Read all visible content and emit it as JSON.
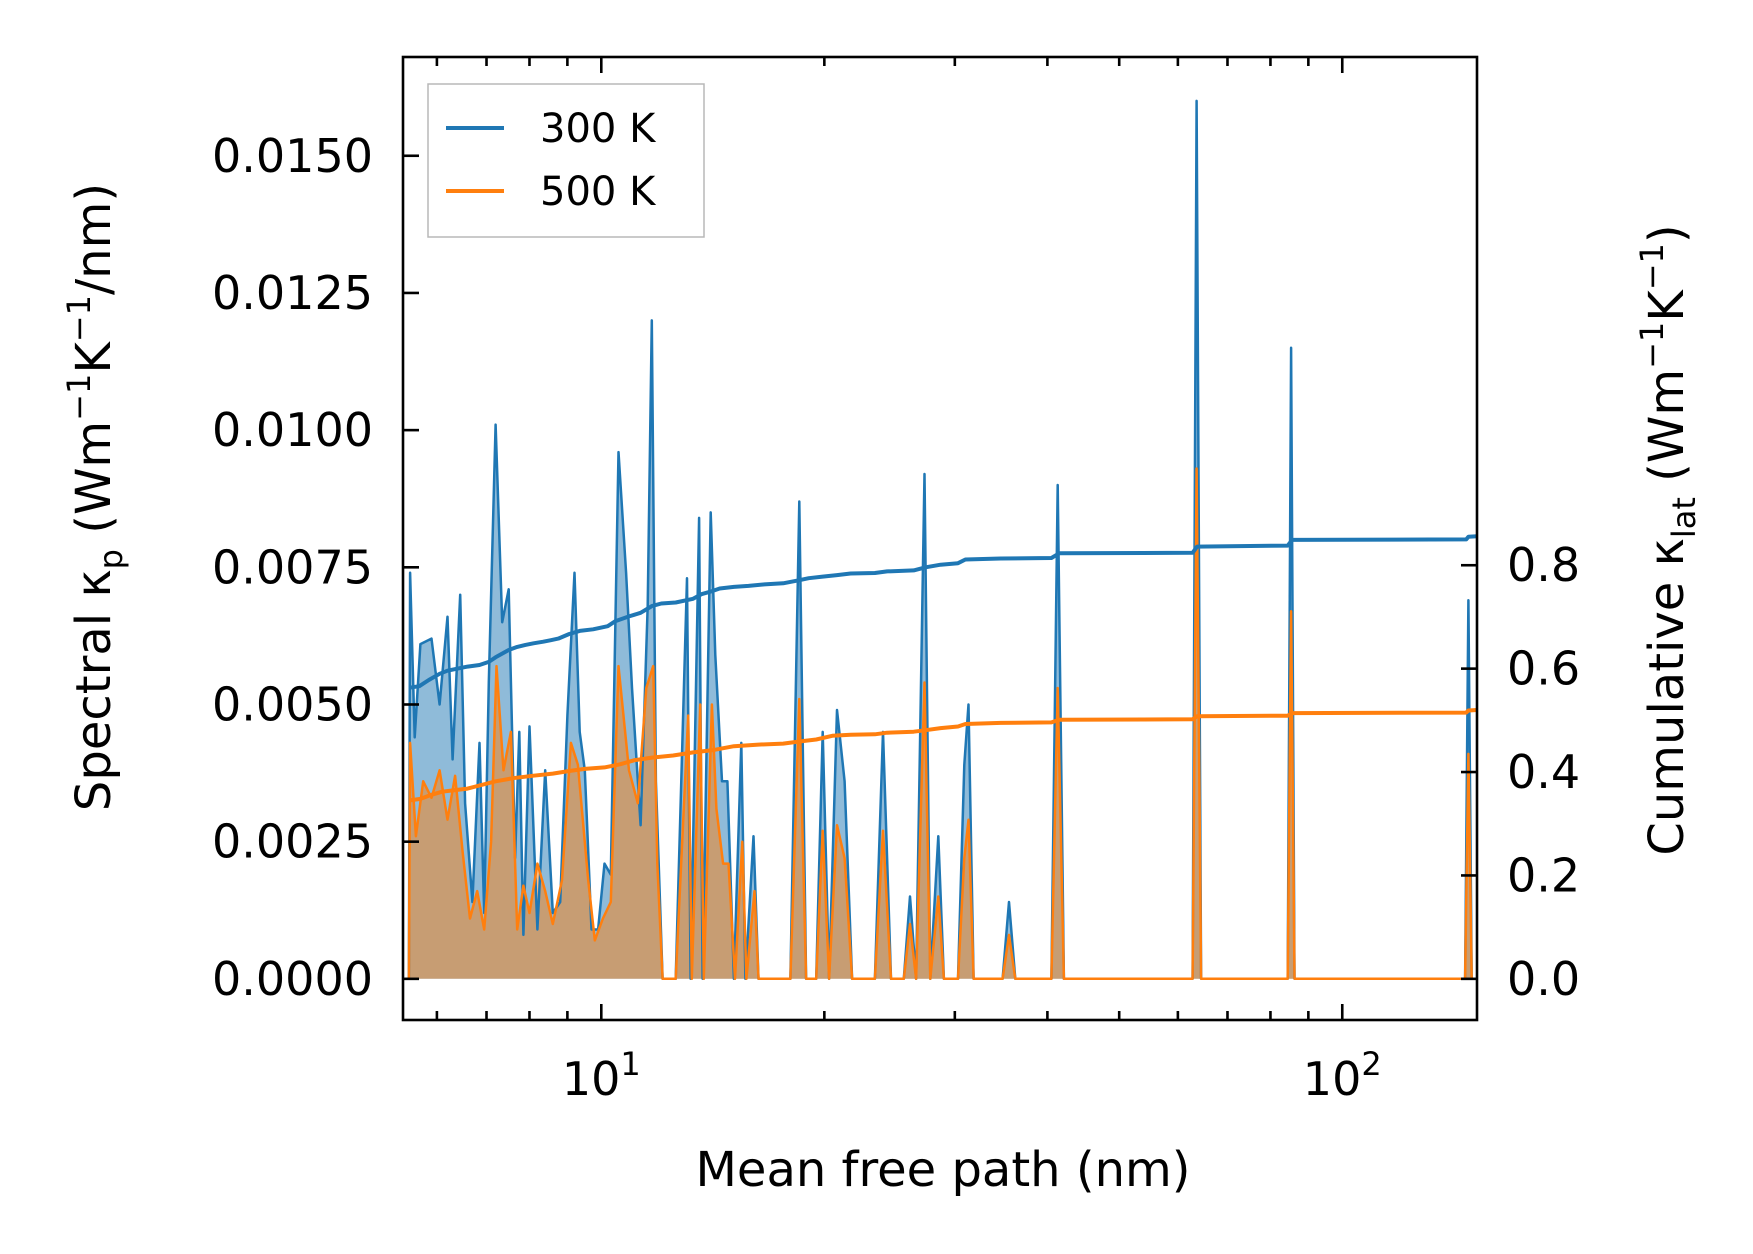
{
  "chart_data": {
    "type": "line",
    "xscale": "log",
    "xlim": [
      5.4,
      152
    ],
    "xlabel": "Mean free path (nm)",
    "ylabel_left": {
      "pre": "Spectral κ",
      "sub": "p",
      "post": " (Wm",
      "sup1": "−1",
      "mid": "K",
      "sup2": "−1",
      "end": "/nm)"
    },
    "ylabel_right": {
      "pre": "Cumulative κ",
      "sub": "lat",
      "post": " (Wm",
      "sup1": "−1",
      "mid": "K",
      "sup2": "−1",
      "end": ")"
    },
    "ylim_left": [
      -0.00075,
      0.0168
    ],
    "ylim_right": [
      -0.0796,
      1.783
    ],
    "x_ticks_major": [
      {
        "value": 10,
        "base": "10",
        "exp": "1"
      },
      {
        "value": 100,
        "base": "10",
        "exp": "2"
      }
    ],
    "x_ticks_minor": [
      6,
      7,
      8,
      9,
      20,
      30,
      40,
      50,
      60,
      70,
      80,
      90
    ],
    "y_ticks_left": [
      "0.0000",
      "0.0025",
      "0.0050",
      "0.0075",
      "0.0100",
      "0.0125",
      "0.0150"
    ],
    "y_ticks_left_values": [
      0,
      0.0025,
      0.005,
      0.0075,
      0.01,
      0.0125,
      0.015
    ],
    "y_ticks_right": [
      "0.0",
      "0.2",
      "0.4",
      "0.6",
      "0.8"
    ],
    "y_ticks_right_values": [
      0,
      0.2,
      0.4,
      0.6,
      0.8
    ],
    "legend": {
      "position": "upper-left",
      "entries": [
        {
          "label": "300 K",
          "color": "#1f77b4"
        },
        {
          "label": "500 K",
          "color": "#ff7f0e"
        }
      ]
    },
    "series": [
      {
        "name": "300 K",
        "color": "#1f77b4",
        "spectral": [
          [
            5.5,
            0
          ],
          [
            5.52,
            0.0074
          ],
          [
            5.6,
            0.0044
          ],
          [
            5.7,
            0.0061
          ],
          [
            5.9,
            0.0062
          ],
          [
            6.05,
            0.005
          ],
          [
            6.2,
            0.0066
          ],
          [
            6.3,
            0.004
          ],
          [
            6.45,
            0.007
          ],
          [
            6.55,
            0.0032
          ],
          [
            6.7,
            0.0014
          ],
          [
            6.85,
            0.0043
          ],
          [
            6.95,
            0.0012
          ],
          [
            7.05,
            0.0054
          ],
          [
            7.2,
            0.0101
          ],
          [
            7.35,
            0.0065
          ],
          [
            7.5,
            0.0071
          ],
          [
            7.65,
            0.0022
          ],
          [
            7.75,
            0.0045
          ],
          [
            7.85,
            0.0008
          ],
          [
            8.0,
            0.0046
          ],
          [
            8.2,
            0.0009
          ],
          [
            8.4,
            0.0038
          ],
          [
            8.6,
            0.0012
          ],
          [
            8.8,
            0.0014
          ],
          [
            9.0,
            0.0048
          ],
          [
            9.2,
            0.0074
          ],
          [
            9.35,
            0.0045
          ],
          [
            9.5,
            0.0038
          ],
          [
            9.7,
            0.0009
          ],
          [
            9.9,
            0.0009
          ],
          [
            10.1,
            0.0021
          ],
          [
            10.3,
            0.0019
          ],
          [
            10.55,
            0.0096
          ],
          [
            10.8,
            0.0074
          ],
          [
            11.0,
            0.0053
          ],
          [
            11.3,
            0.0028
          ],
          [
            11.55,
            0.0068
          ],
          [
            11.7,
            0.012
          ],
          [
            11.85,
            0.0036
          ],
          [
            12.1,
            0
          ],
          [
            12.6,
            0
          ],
          [
            13.05,
            0.0073
          ],
          [
            13.2,
            0
          ],
          [
            13.55,
            0.0084
          ],
          [
            13.7,
            0
          ],
          [
            14.05,
            0.0085
          ],
          [
            14.25,
            0.0059
          ],
          [
            14.55,
            0.0036
          ],
          [
            14.8,
            0.0036
          ],
          [
            15.1,
            0
          ],
          [
            15.45,
            0.0043
          ],
          [
            15.65,
            0
          ],
          [
            16.05,
            0.0026
          ],
          [
            16.3,
            0
          ],
          [
            18.0,
            0
          ],
          [
            18.5,
            0.0087
          ],
          [
            18.9,
            0
          ],
          [
            19.5,
            0
          ],
          [
            19.9,
            0.0045
          ],
          [
            20.3,
            0
          ],
          [
            20.8,
            0.0049
          ],
          [
            21.3,
            0.0036
          ],
          [
            21.8,
            0
          ],
          [
            23.4,
            0
          ],
          [
            24.0,
            0.0045
          ],
          [
            24.6,
            0
          ],
          [
            25.6,
            0
          ],
          [
            26.1,
            0.0015
          ],
          [
            26.6,
            0
          ],
          [
            27.3,
            0.0092
          ],
          [
            27.8,
            0
          ],
          [
            28.5,
            0.0026
          ],
          [
            29.0,
            0
          ],
          [
            30.3,
            0
          ],
          [
            30.9,
            0.0039
          ],
          [
            31.3,
            0.005
          ],
          [
            31.8,
            0
          ],
          [
            34.8,
            0
          ],
          [
            35.5,
            0.0014
          ],
          [
            36.2,
            0
          ],
          [
            40.5,
            0
          ],
          [
            41.3,
            0.009
          ],
          [
            42.1,
            0
          ],
          [
            62.8,
            0
          ],
          [
            63.6,
            0.016
          ],
          [
            64.5,
            0
          ],
          [
            67.0,
            0
          ],
          [
            84.4,
            0
          ],
          [
            85.3,
            0.0115
          ],
          [
            86.2,
            0
          ],
          [
            146.5,
            0
          ],
          [
            148.0,
            0.0069
          ],
          [
            149.5,
            0
          ]
        ],
        "cumulative": [
          [
            5.5,
            0.563
          ],
          [
            5.68,
            0.566
          ],
          [
            5.85,
            0.578
          ],
          [
            6.05,
            0.59
          ],
          [
            6.2,
            0.596
          ],
          [
            6.4,
            0.6
          ],
          [
            6.6,
            0.604
          ],
          [
            6.85,
            0.607
          ],
          [
            7.05,
            0.613
          ],
          [
            7.2,
            0.622
          ],
          [
            7.5,
            0.636
          ],
          [
            7.7,
            0.642
          ],
          [
            7.9,
            0.646
          ],
          [
            8.1,
            0.649
          ],
          [
            8.35,
            0.652
          ],
          [
            8.55,
            0.655
          ],
          [
            8.75,
            0.658
          ],
          [
            9.05,
            0.667
          ],
          [
            9.35,
            0.673
          ],
          [
            9.75,
            0.676
          ],
          [
            10.2,
            0.682
          ],
          [
            10.45,
            0.692
          ],
          [
            10.9,
            0.701
          ],
          [
            11.3,
            0.708
          ],
          [
            11.7,
            0.721
          ],
          [
            12.05,
            0.726
          ],
          [
            12.6,
            0.728
          ],
          [
            13.3,
            0.735
          ],
          [
            13.65,
            0.744
          ],
          [
            14.05,
            0.749
          ],
          [
            14.45,
            0.755
          ],
          [
            15.1,
            0.758
          ],
          [
            15.8,
            0.76
          ],
          [
            16.6,
            0.763
          ],
          [
            17.6,
            0.765
          ],
          [
            18.5,
            0.771
          ],
          [
            19.05,
            0.775
          ],
          [
            19.9,
            0.778
          ],
          [
            20.8,
            0.781
          ],
          [
            21.7,
            0.784
          ],
          [
            23.4,
            0.785
          ],
          [
            24.3,
            0.788
          ],
          [
            26.4,
            0.79
          ],
          [
            27.4,
            0.796
          ],
          [
            28.7,
            0.801
          ],
          [
            30.3,
            0.804
          ],
          [
            31.0,
            0.811
          ],
          [
            34.6,
            0.813
          ],
          [
            40.5,
            0.814
          ],
          [
            41.5,
            0.823
          ],
          [
            62.8,
            0.824
          ],
          [
            63.7,
            0.836
          ],
          [
            84.4,
            0.838
          ],
          [
            85.6,
            0.849
          ],
          [
            147.0,
            0.85
          ],
          [
            148.0,
            0.855
          ],
          [
            152.0,
            0.856
          ]
        ]
      },
      {
        "name": "500 K",
        "color": "#ff7f0e",
        "spectral": [
          [
            5.5,
            0
          ],
          [
            5.52,
            0.0043
          ],
          [
            5.62,
            0.0026
          ],
          [
            5.75,
            0.0036
          ],
          [
            5.9,
            0.0033
          ],
          [
            6.05,
            0.0038
          ],
          [
            6.2,
            0.0029
          ],
          [
            6.35,
            0.0037
          ],
          [
            6.5,
            0.0023
          ],
          [
            6.65,
            0.0011
          ],
          [
            6.8,
            0.0016
          ],
          [
            6.95,
            0.0009
          ],
          [
            7.1,
            0.0025
          ],
          [
            7.22,
            0.0057
          ],
          [
            7.38,
            0.0038
          ],
          [
            7.55,
            0.0045
          ],
          [
            7.7,
            0.0009
          ],
          [
            7.85,
            0.0017
          ],
          [
            8.0,
            0.0012
          ],
          [
            8.2,
            0.0021
          ],
          [
            8.4,
            0.0016
          ],
          [
            8.6,
            0.001
          ],
          [
            8.85,
            0.0018
          ],
          [
            9.1,
            0.0043
          ],
          [
            9.3,
            0.0039
          ],
          [
            9.6,
            0.0018
          ],
          [
            9.8,
            0.0007
          ],
          [
            10.05,
            0.0011
          ],
          [
            10.3,
            0.0014
          ],
          [
            10.55,
            0.0057
          ],
          [
            10.9,
            0.0038
          ],
          [
            11.2,
            0.0032
          ],
          [
            11.5,
            0.0053
          ],
          [
            11.75,
            0.0057
          ],
          [
            11.9,
            0.0021
          ],
          [
            12.1,
            0
          ],
          [
            12.6,
            0
          ],
          [
            13.1,
            0.0048
          ],
          [
            13.25,
            0
          ],
          [
            13.6,
            0.005
          ],
          [
            13.75,
            0
          ],
          [
            14.1,
            0.005
          ],
          [
            14.3,
            0.0031
          ],
          [
            14.6,
            0.0021
          ],
          [
            14.85,
            0.0021
          ],
          [
            15.15,
            0
          ],
          [
            15.5,
            0.0025
          ],
          [
            15.7,
            0
          ],
          [
            16.1,
            0.0016
          ],
          [
            16.3,
            0
          ],
          [
            18.0,
            0
          ],
          [
            18.5,
            0.0051
          ],
          [
            18.9,
            0
          ],
          [
            19.5,
            0
          ],
          [
            19.9,
            0.0027
          ],
          [
            20.3,
            0
          ],
          [
            20.8,
            0.0028
          ],
          [
            21.3,
            0.0022
          ],
          [
            21.8,
            0
          ],
          [
            23.4,
            0
          ],
          [
            24.0,
            0.0027
          ],
          [
            24.6,
            0
          ],
          [
            25.6,
            0
          ],
          [
            26.1,
            0.001
          ],
          [
            26.6,
            0
          ],
          [
            27.3,
            0.0054
          ],
          [
            27.8,
            0
          ],
          [
            28.5,
            0.0015
          ],
          [
            29.0,
            0
          ],
          [
            30.3,
            0
          ],
          [
            30.9,
            0.0022
          ],
          [
            31.3,
            0.0029
          ],
          [
            31.8,
            0
          ],
          [
            34.8,
            0
          ],
          [
            35.5,
            0.0008
          ],
          [
            36.2,
            0
          ],
          [
            40.5,
            0
          ],
          [
            41.3,
            0.0053
          ],
          [
            42.1,
            0
          ],
          [
            62.8,
            0
          ],
          [
            63.6,
            0.0093
          ],
          [
            64.5,
            0
          ],
          [
            67.0,
            0
          ],
          [
            84.4,
            0
          ],
          [
            85.3,
            0.0067
          ],
          [
            86.2,
            0
          ],
          [
            146.5,
            0
          ],
          [
            148.0,
            0.0041
          ],
          [
            149.5,
            0
          ]
        ],
        "cumulative": [
          [
            5.5,
            0.345
          ],
          [
            5.7,
            0.348
          ],
          [
            5.9,
            0.356
          ],
          [
            6.1,
            0.362
          ],
          [
            6.35,
            0.365
          ],
          [
            6.6,
            0.368
          ],
          [
            6.85,
            0.374
          ],
          [
            7.2,
            0.382
          ],
          [
            7.6,
            0.388
          ],
          [
            8.1,
            0.393
          ],
          [
            8.6,
            0.397
          ],
          [
            9.05,
            0.402
          ],
          [
            9.5,
            0.406
          ],
          [
            10.1,
            0.409
          ],
          [
            10.6,
            0.415
          ],
          [
            11.1,
            0.423
          ],
          [
            11.7,
            0.428
          ],
          [
            12.5,
            0.432
          ],
          [
            13.3,
            0.438
          ],
          [
            14.1,
            0.442
          ],
          [
            15.1,
            0.45
          ],
          [
            16.3,
            0.453
          ],
          [
            17.6,
            0.455
          ],
          [
            18.5,
            0.459
          ],
          [
            19.5,
            0.463
          ],
          [
            20.5,
            0.47
          ],
          [
            21.7,
            0.472
          ],
          [
            23.4,
            0.473
          ],
          [
            24.3,
            0.476
          ],
          [
            26.4,
            0.478
          ],
          [
            27.4,
            0.481
          ],
          [
            28.7,
            0.485
          ],
          [
            30.3,
            0.488
          ],
          [
            31.0,
            0.493
          ],
          [
            34.6,
            0.495
          ],
          [
            40.5,
            0.496
          ],
          [
            41.5,
            0.501
          ],
          [
            62.8,
            0.502
          ],
          [
            63.7,
            0.508
          ],
          [
            84.4,
            0.509
          ],
          [
            85.6,
            0.514
          ],
          [
            147.0,
            0.515
          ],
          [
            148.0,
            0.519
          ],
          [
            152.0,
            0.52
          ]
        ]
      }
    ]
  }
}
